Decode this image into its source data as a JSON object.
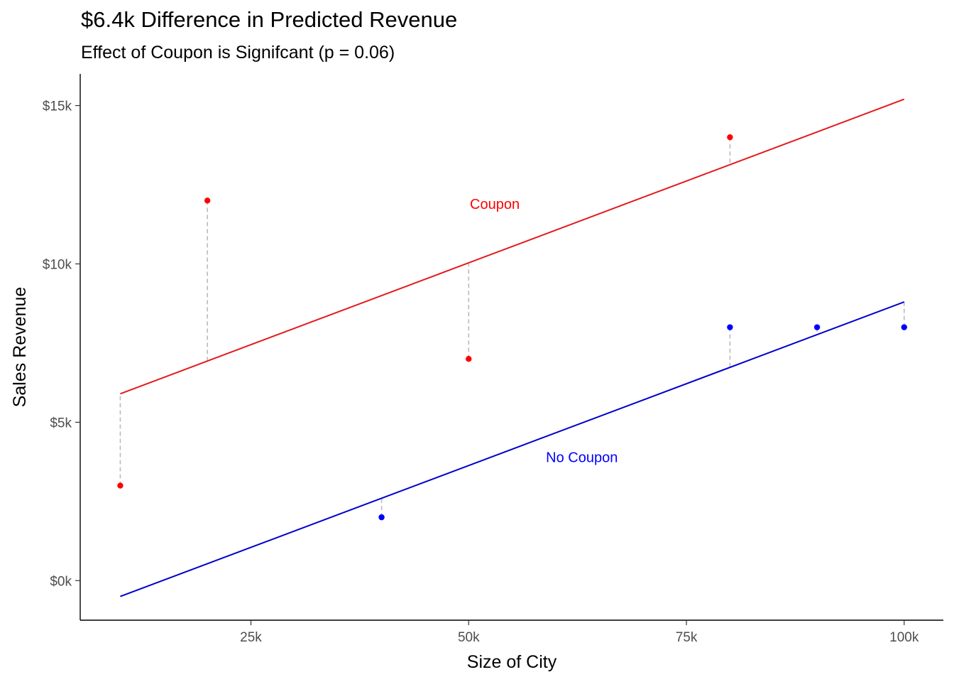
{
  "chart_data": {
    "type": "scatter",
    "title": "$6.4k Difference in Predicted Revenue",
    "subtitle": "Effect of Coupon is Signifcant (p = 0.06)",
    "xlabel": "Size of City",
    "ylabel": "Sales Revenue",
    "xlim": [
      5400,
      104500
    ],
    "ylim": [
      -1250,
      16000
    ],
    "x_ticks": [
      {
        "value": 25000,
        "label": "25k"
      },
      {
        "value": 50000,
        "label": "50k"
      },
      {
        "value": 75000,
        "label": "75k"
      },
      {
        "value": 100000,
        "label": "100k"
      }
    ],
    "y_ticks": [
      {
        "value": 0,
        "label": "$0k"
      },
      {
        "value": 5000,
        "label": "$5k"
      },
      {
        "value": 10000,
        "label": "$10k"
      },
      {
        "value": 15000,
        "label": "$15k"
      }
    ],
    "grid": false,
    "series": [
      {
        "name": "Coupon",
        "color": "#ff0000",
        "line_color": "#e31a1c",
        "label_at": [
          53000,
          11900
        ],
        "points": [
          {
            "x": 10000,
            "y": 3000
          },
          {
            "x": 20000,
            "y": 12000
          },
          {
            "x": 50000,
            "y": 7000
          },
          {
            "x": 80000,
            "y": 14000
          }
        ],
        "fit": {
          "x": [
            10000,
            100000
          ],
          "y": [
            5900,
            15200
          ]
        }
      },
      {
        "name": "No Coupon",
        "color": "#0000ff",
        "line_color": "#0000cd",
        "label_at": [
          63000,
          3900
        ],
        "points": [
          {
            "x": 40000,
            "y": 2000
          },
          {
            "x": 80000,
            "y": 8000
          },
          {
            "x": 90000,
            "y": 8000
          },
          {
            "x": 100000,
            "y": 8000
          }
        ],
        "fit": {
          "x": [
            10000,
            100000
          ],
          "y": [
            -500,
            8800
          ]
        }
      }
    ],
    "residual_color": "#bbbbbb"
  }
}
